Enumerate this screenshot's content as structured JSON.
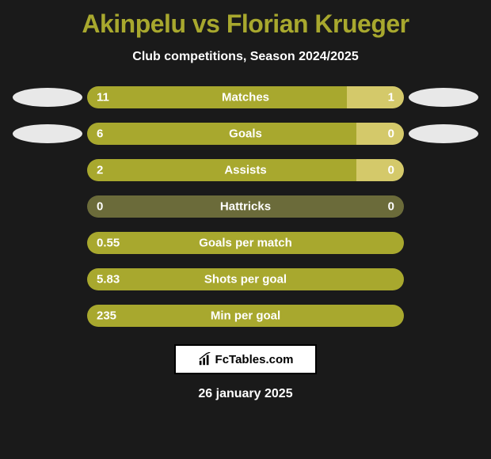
{
  "title": "Akinpelu vs Florian Krueger",
  "subtitle": "Club competitions, Season 2024/2025",
  "date": "26 january 2025",
  "logo_text": "FcTables.com",
  "colors": {
    "background": "#1a1a1a",
    "primary_bar": "#a8a82e",
    "secondary_bar": "#d4c96a",
    "neutral_bar": "#6b6b3a",
    "title_color": "#a8a82e",
    "text_color": "#ffffff",
    "ellipse_color": "#e8e8e8"
  },
  "stats": [
    {
      "label": "Matches",
      "left_value": "11",
      "right_value": "1",
      "left_width_pct": 82,
      "right_width_pct": 18,
      "left_color": "#a8a82e",
      "right_color": "#d4c96a",
      "show_ellipses": true
    },
    {
      "label": "Goals",
      "left_value": "6",
      "right_value": "0",
      "left_width_pct": 85,
      "right_width_pct": 15,
      "left_color": "#a8a82e",
      "right_color": "#d4c96a",
      "show_ellipses": true
    },
    {
      "label": "Assists",
      "left_value": "2",
      "right_value": "0",
      "left_width_pct": 85,
      "right_width_pct": 15,
      "left_color": "#a8a82e",
      "right_color": "#d4c96a",
      "show_ellipses": false
    },
    {
      "label": "Hattricks",
      "left_value": "0",
      "right_value": "0",
      "left_width_pct": 50,
      "right_width_pct": 50,
      "left_color": "#6b6b3a",
      "right_color": "#6b6b3a",
      "show_ellipses": false
    },
    {
      "label": "Goals per match",
      "left_value": "0.55",
      "right_value": "",
      "left_width_pct": 100,
      "right_width_pct": 0,
      "left_color": "#a8a82e",
      "right_color": "#a8a82e",
      "show_ellipses": false
    },
    {
      "label": "Shots per goal",
      "left_value": "5.83",
      "right_value": "",
      "left_width_pct": 100,
      "right_width_pct": 0,
      "left_color": "#a8a82e",
      "right_color": "#a8a82e",
      "show_ellipses": false
    },
    {
      "label": "Min per goal",
      "left_value": "235",
      "right_value": "",
      "left_width_pct": 100,
      "right_width_pct": 0,
      "left_color": "#a8a82e",
      "right_color": "#a8a82e",
      "show_ellipses": false
    }
  ]
}
